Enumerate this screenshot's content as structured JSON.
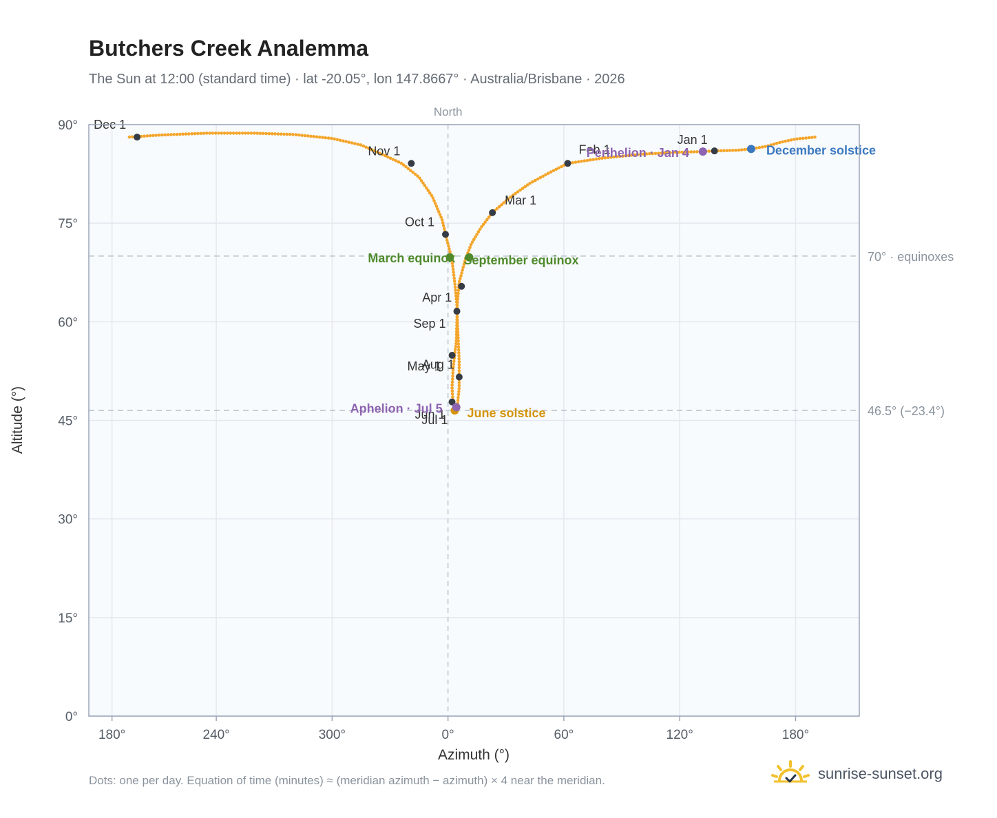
{
  "header": {
    "title": "Butchers Creek Analemma",
    "subtitle": "The Sun at 12:00 (standard time) · lat -20.05°, lon 147.8667° · Australia/Brisbane · 2026"
  },
  "footer": {
    "note": "Dots: one per day. Equation of time (minutes) ≈ (meridian azimuth − azimuth) × 4 near the meridian.",
    "brand": "sunrise-sunset.org"
  },
  "colors": {
    "curve": "#f4a52a",
    "month_dot": "#363c45",
    "equinox": "#4f8a2c",
    "june_solstice": "#d4940b",
    "december_solstice": "#3b78c0",
    "apsis": "#8e64b0",
    "grid": "#e4e8ee",
    "reference_line": "#b9c3cd",
    "plot_background": "#f8fbfe",
    "axis_frame": "#9aa5b5"
  },
  "chart_data": {
    "type": "scatter",
    "xlabel": "Azimuth (°)",
    "ylabel": "Altitude (°)",
    "x_note": "azimuth axis centred on North (0°); ticks read 180°, 240°, 300°, 0°, 60°, 120°, 180°",
    "x_ticks": [
      {
        "azimuth": -174,
        "label": "180°"
      },
      {
        "azimuth": -120,
        "label": "240°"
      },
      {
        "azimuth": -60,
        "label": "300°"
      },
      {
        "azimuth": 0,
        "label": "0°"
      },
      {
        "azimuth": 60,
        "label": "60°"
      },
      {
        "azimuth": 120,
        "label": "120°"
      },
      {
        "azimuth": 180,
        "label": "180°"
      }
    ],
    "xlim": [
      -186,
      213
    ],
    "y_ticks": [
      {
        "value": 0,
        "label": "0°"
      },
      {
        "value": 15,
        "label": "15°"
      },
      {
        "value": 30,
        "label": "30°"
      },
      {
        "value": 45,
        "label": "45°"
      },
      {
        "value": 60,
        "label": "60°"
      },
      {
        "value": 75,
        "label": "75°"
      },
      {
        "value": 90,
        "label": "90°"
      }
    ],
    "ylim": [
      0,
      90
    ],
    "grid": true,
    "north_marker": {
      "azimuth": 0,
      "label": "North"
    },
    "reference_lines": [
      {
        "altitude": 70,
        "label": "70° · equinoxes"
      },
      {
        "altitude": 46.5,
        "label": "46.5° (−23.4°)"
      }
    ],
    "analemma_path": [
      [
        -165,
        88.1
      ],
      [
        -150,
        88.4
      ],
      [
        -125,
        88.7
      ],
      [
        -100,
        88.7
      ],
      [
        -80,
        88.5
      ],
      [
        -60,
        87.9
      ],
      [
        -45,
        86.9
      ],
      [
        -35,
        85.6
      ],
      [
        -24,
        84.1
      ],
      [
        -15,
        82
      ],
      [
        -8,
        79
      ],
      [
        -3,
        75.5
      ],
      [
        -1,
        73
      ],
      [
        2,
        69.5
      ],
      [
        3.5,
        66
      ],
      [
        4.8,
        62
      ],
      [
        4.3,
        57
      ],
      [
        2.7,
        53
      ],
      [
        2.1,
        50
      ],
      [
        2.5,
        48.2
      ],
      [
        3.5,
        46.8
      ],
      [
        5,
        47.5
      ],
      [
        5.8,
        50
      ],
      [
        5.8,
        54
      ],
      [
        5.2,
        58
      ],
      [
        4.6,
        62
      ],
      [
        5.8,
        66
      ],
      [
        9,
        69.5
      ],
      [
        12,
        71.8
      ],
      [
        17,
        74.3
      ],
      [
        23,
        76.6
      ],
      [
        32,
        78.9
      ],
      [
        42,
        81
      ],
      [
        52,
        82.6
      ],
      [
        62,
        84.1
      ],
      [
        80,
        84.9
      ],
      [
        100,
        85.5
      ],
      [
        120,
        85.8
      ],
      [
        132,
        85.9
      ],
      [
        138,
        86
      ],
      [
        150,
        86.1
      ],
      [
        157,
        86.3
      ],
      [
        165,
        86.7
      ],
      [
        172,
        87.3
      ],
      [
        180,
        87.8
      ],
      [
        190,
        88.1
      ]
    ],
    "month_points": [
      {
        "label": "Jan 1",
        "azimuth": 138,
        "altitude": 86.0
      },
      {
        "label": "Feb 1",
        "azimuth": 62,
        "altitude": 84.1
      },
      {
        "label": "Mar 1",
        "azimuth": 23,
        "altitude": 76.6
      },
      {
        "label": "Apr 1",
        "azimuth": 7,
        "altitude": 65.4
      },
      {
        "label": "May 1",
        "azimuth": 2.1,
        "altitude": 54.9
      },
      {
        "label": "Jun 1",
        "azimuth": 2.1,
        "altitude": 47.8
      },
      {
        "label": "Jul 1",
        "azimuth": 3.5,
        "altitude": 46.6
      },
      {
        "label": "Aug 1",
        "azimuth": 5.8,
        "altitude": 51.6
      },
      {
        "label": "Sep 1",
        "azimuth": 4.6,
        "altitude": 61.6
      },
      {
        "label": "Oct 1",
        "azimuth": -1.3,
        "altitude": 73.3
      },
      {
        "label": "Nov 1",
        "azimuth": -19,
        "altitude": 84.1
      },
      {
        "label": "Dec 1",
        "azimuth": -161,
        "altitude": 88.1
      }
    ],
    "events": [
      {
        "label": "March equinox",
        "kind": "equinox",
        "azimuth": 1,
        "altitude": 69.8
      },
      {
        "label": "September equinox",
        "kind": "equinox",
        "azimuth": 11,
        "altitude": 69.8
      },
      {
        "label": "June solstice",
        "kind": "june_solstice",
        "azimuth": 3.5,
        "altitude": 46.5
      },
      {
        "label": "December solstice",
        "kind": "december_solstice",
        "azimuth": 157,
        "altitude": 86.3
      },
      {
        "label": "Perihelion · Jan 4",
        "kind": "apsis",
        "azimuth": 132,
        "altitude": 85.9
      },
      {
        "label": "Aphelion · Jul 5",
        "kind": "apsis",
        "azimuth": 4.3,
        "altitude": 47.0
      }
    ]
  }
}
